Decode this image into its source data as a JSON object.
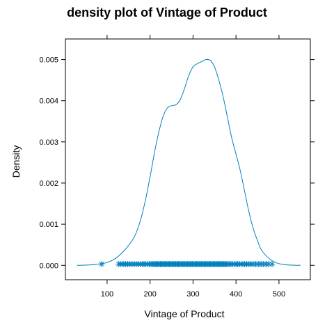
{
  "chart_data": {
    "type": "area",
    "title": "density plot of Vintage of Product",
    "xlabel": "Vintage of Product",
    "ylabel": "Density",
    "xlim": [
      3,
      573
    ],
    "ylim": [
      -0.00035,
      0.0055
    ],
    "x_ticks": [
      100,
      200,
      300,
      400,
      500
    ],
    "y_ticks": [
      0.0,
      0.001,
      0.002,
      0.003,
      0.004,
      0.005
    ],
    "y_tick_labels": [
      "0.000",
      "0.001",
      "0.002",
      "0.003",
      "0.004",
      "0.005"
    ],
    "grid": false,
    "line_color": "#0080BF",
    "series": [
      {
        "x": [
          30,
          60,
          80,
          100,
          120,
          140,
          160,
          170,
          180,
          190,
          200,
          210,
          220,
          230,
          240,
          250,
          260,
          270,
          280,
          290,
          300,
          310,
          320,
          330,
          340,
          350,
          360,
          370,
          380,
          390,
          400,
          410,
          420,
          430,
          440,
          450,
          460,
          480,
          500,
          520,
          550
        ],
        "y": [
          0.0,
          1e-05,
          3e-05,
          7e-05,
          0.00017,
          0.00036,
          0.00063,
          0.00085,
          0.00118,
          0.00162,
          0.00215,
          0.00272,
          0.00322,
          0.00361,
          0.00382,
          0.00388,
          0.0039,
          0.00402,
          0.00429,
          0.00461,
          0.00482,
          0.0049,
          0.00495,
          0.005,
          0.00498,
          0.00482,
          0.0045,
          0.0041,
          0.0036,
          0.0031,
          0.0027,
          0.0023,
          0.0018,
          0.0013,
          0.0009,
          0.0006,
          0.00036,
          0.00014,
          4e-05,
          1e-05,
          0.0
        ]
      }
    ],
    "rug": {
      "marker": "asterisk",
      "y": 3e-05,
      "x": [
        87,
        127,
        131,
        135,
        139,
        143,
        148,
        153,
        158,
        163,
        168,
        173,
        178,
        182,
        186,
        190,
        194,
        198,
        202,
        206,
        209,
        212,
        215,
        218,
        221,
        224,
        227,
        230,
        233,
        236,
        239,
        242,
        245,
        248,
        251,
        254,
        257,
        260,
        263,
        266,
        269,
        272,
        275,
        278,
        281,
        284,
        287,
        290,
        293,
        296,
        299,
        302,
        305,
        308,
        311,
        314,
        317,
        320,
        323,
        326,
        329,
        332,
        335,
        338,
        341,
        344,
        347,
        350,
        353,
        356,
        359,
        362,
        365,
        368,
        371,
        374,
        377,
        380,
        384,
        388,
        392,
        396,
        400,
        404,
        408,
        412,
        416,
        420,
        425,
        430,
        435,
        440,
        446,
        452,
        458,
        464,
        470,
        476,
        484
      ]
    }
  }
}
